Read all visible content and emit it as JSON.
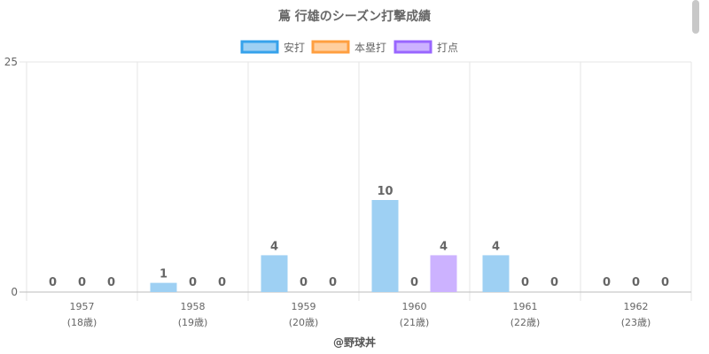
{
  "chart_data": {
    "type": "bar",
    "title": "蔦 行雄のシーズン打撃成績",
    "categories": [
      "1957",
      "1958",
      "1959",
      "1960",
      "1961",
      "1962"
    ],
    "category_sublabels": [
      "(18歳)",
      "(19歳)",
      "(20歳)",
      "(21歳)",
      "(22歳)",
      "(23歳)"
    ],
    "series": [
      {
        "name": "安打",
        "values": [
          0,
          1,
          4,
          10,
          4,
          0
        ],
        "color": "#9ed0f3",
        "border": "#36a2eb"
      },
      {
        "name": "本塁打",
        "values": [
          0,
          0,
          0,
          0,
          0,
          0
        ],
        "color": "#ffcf9f",
        "border": "#ff9f40"
      },
      {
        "name": "打点",
        "values": [
          0,
          0,
          0,
          4,
          0,
          0
        ],
        "color": "#ccb2ff",
        "border": "#9966ff"
      }
    ],
    "y_ticks": [
      "0",
      "25"
    ],
    "ylim": [
      0,
      25
    ],
    "grid": true,
    "legend_position": "top",
    "data_labels": true
  },
  "footer": "@野球丼"
}
